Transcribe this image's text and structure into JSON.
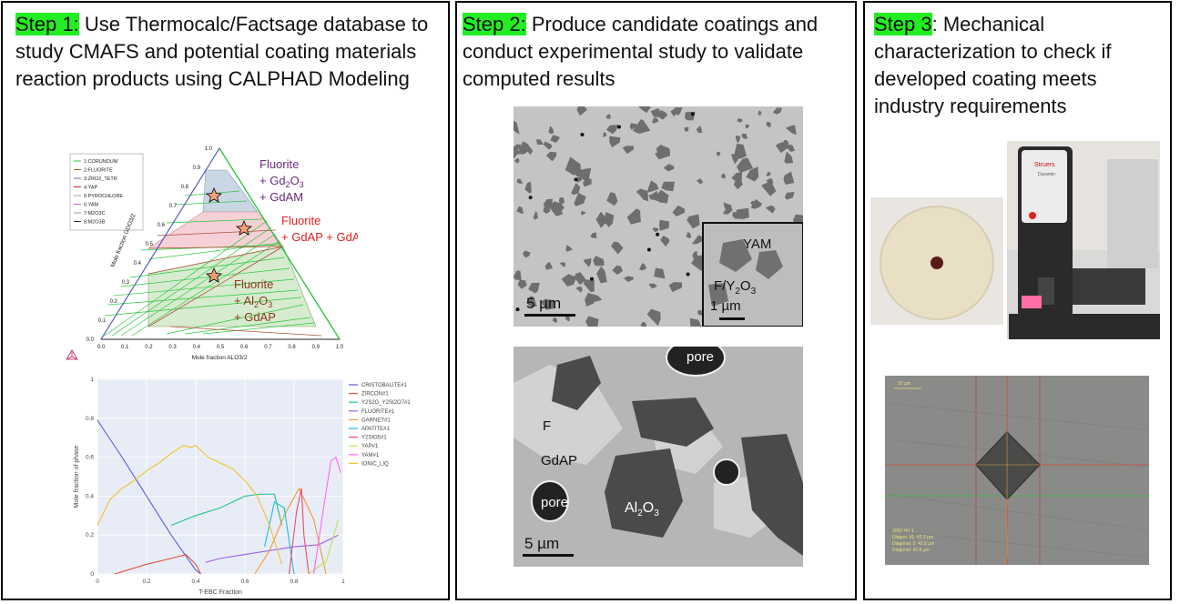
{
  "step1": {
    "tag": "Step 1:",
    "text": " Use Thermocalc/Factsage database to study CMAFS and potential coating materials reaction products using CALPHAD Modeling"
  },
  "step2": {
    "tag": "Step 2:",
    "text": " Produce candidate coatings and conduct experimental study to validate computed results"
  },
  "step3": {
    "tag": "Step 3",
    "text": ": Mechanical characterization to check if developed coating meets industry requirements"
  },
  "ternary": {
    "legend": [
      "1:CORUNDUM",
      "2:FLUORITE",
      "3:ZRO2_TETR",
      "4:YAP",
      "5:PYROCHLORE",
      "6:YAM",
      "7:M2O3C",
      "8:M2O3B"
    ],
    "xlabel": "Mole fraction ALO3/2",
    "ylabel": "Mole fraction GDO3/2",
    "ticks": [
      "0.0",
      "0.1",
      "0.2",
      "0.3",
      "0.4",
      "0.5",
      "0.6",
      "0.7",
      "0.8",
      "0.9",
      "1.0"
    ],
    "regions": [
      {
        "line1": "Fluorite",
        "line2": "+ Gd",
        "sub2": "2",
        "mid2": "O",
        "sub2b": "3",
        "line3": "+ GdAM",
        "color": "#6b2a7a"
      },
      {
        "line1": "Fluorite",
        "line2": "+ GdAP + GdAM",
        "color": "#e0201c"
      },
      {
        "line1": "Fluorite",
        "line2": "+ Al",
        "sub2": "2",
        "mid2": "O",
        "sub2b": "3",
        "line3": "+ GdAP",
        "color": "#8b3a1e"
      }
    ]
  },
  "chart_data": {
    "type": "line",
    "xlabel": "T-EBC Fraction",
    "ylabel": "Mole fraction of phase",
    "xlim": [
      0,
      1
    ],
    "ylim": [
      0,
      1
    ],
    "xticks": [
      "0",
      "0.2",
      "0.4",
      "0.6",
      "0.8",
      "1"
    ],
    "yticks": [
      "0",
      "0.2",
      "0.4",
      "0.6",
      "0.8",
      "1"
    ],
    "grid": true,
    "legend_position": "right",
    "series": [
      {
        "name": "CRISTOBALITE#1",
        "color": "#5a5fd6",
        "x": [
          0,
          0.1,
          0.2,
          0.3,
          0.4,
          0.42
        ],
        "y": [
          0.79,
          0.6,
          0.4,
          0.2,
          0.02,
          0
        ]
      },
      {
        "name": "ZIRCON#1",
        "color": "#e0533b",
        "x": [
          0.07,
          0.2,
          0.3,
          0.36,
          0.4,
          0.42
        ],
        "y": [
          0,
          0.05,
          0.08,
          0.1,
          0.05,
          0
        ]
      },
      {
        "name": "Y2S2G_Y2SI2O7#1",
        "color": "#1fc28a",
        "x": [
          0.3,
          0.4,
          0.5,
          0.6,
          0.66,
          0.72,
          0.75
        ],
        "y": [
          0.25,
          0.3,
          0.34,
          0.4,
          0.41,
          0.41,
          0.25
        ]
      },
      {
        "name": "FLUORITE#1",
        "color": "#a060e8",
        "x": [
          0.44,
          0.5,
          0.6,
          0.7,
          0.8,
          0.9,
          0.98
        ],
        "y": [
          0.06,
          0.08,
          0.1,
          0.12,
          0.14,
          0.15,
          0.2
        ]
      },
      {
        "name": "GARNET#1",
        "color": "#f29a3a",
        "x": [
          0.64,
          0.7,
          0.76,
          0.82,
          0.88,
          0.93
        ],
        "y": [
          0,
          0.12,
          0.3,
          0.44,
          0.28,
          0
        ]
      },
      {
        "name": "APATITE#1",
        "color": "#18c2d8",
        "x": [
          0.68,
          0.72,
          0.76,
          0.8
        ],
        "y": [
          0.14,
          0.37,
          0.34,
          0
        ]
      },
      {
        "name": "Y2SIO5#1",
        "color": "#ef4a6a",
        "x": [
          0.78,
          0.81,
          0.83,
          0.84,
          0.86
        ],
        "y": [
          0,
          0.32,
          0.44,
          0.2,
          0
        ]
      },
      {
        "name": "YAP#1",
        "color": "#b8e850",
        "x": [
          0.86,
          0.9,
          0.93,
          0.95,
          0.98
        ],
        "y": [
          0,
          0.04,
          0.06,
          0.15,
          0.28
        ]
      },
      {
        "name": "YAM#1",
        "color": "#ff6af0",
        "x": [
          0.88,
          0.92,
          0.95,
          0.97,
          0.99
        ],
        "y": [
          0,
          0.34,
          0.58,
          0.6,
          0.52
        ]
      },
      {
        "name": "IONIC_LIQ",
        "color": "#f4c02a",
        "x": [
          0,
          0.05,
          0.1,
          0.15,
          0.2,
          0.25,
          0.3,
          0.35,
          0.38,
          0.4,
          0.45,
          0.5,
          0.55,
          0.6,
          0.65,
          0.7,
          0.75
        ],
        "y": [
          0.25,
          0.38,
          0.44,
          0.48,
          0.53,
          0.57,
          0.62,
          0.66,
          0.65,
          0.66,
          0.6,
          0.57,
          0.54,
          0.48,
          0.4,
          0.25,
          0.05
        ]
      }
    ]
  },
  "sem1": {
    "scale": "5 µm",
    "inset_label": "YAM",
    "inset_label2": "F/Y",
    "inset_sub": "2",
    "inset_o": "O",
    "inset_sub2": "3",
    "inset_scale": "1 µm"
  },
  "sem2": {
    "labels": {
      "pore1": "pore",
      "f": "F",
      "gdap": "GdAP",
      "pore2": "pore",
      "al": "Al",
      "al_sub": "2",
      "al_o": "O",
      "al_sub2": "3"
    },
    "scale": "5 µm"
  },
  "machine": {
    "brand": "Struers",
    "model": "Duramin"
  },
  "micro": {
    "scale": "20 µm",
    "lines": [
      "3060 HV 1",
      "Diagon. d1: 42.3 µm",
      "Diagonal. 2: 42.8 µm",
      "Diagonal: 42.6 µm"
    ]
  }
}
